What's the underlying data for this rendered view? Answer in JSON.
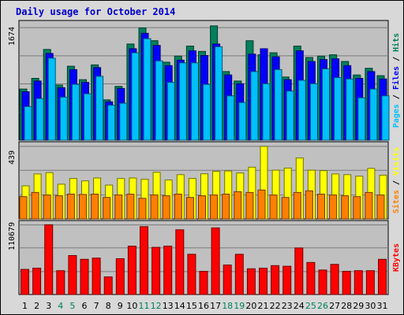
{
  "chart_data": {
    "type": "bar",
    "title": "Daily usage for October 2014",
    "categories": [
      "1",
      "2",
      "3",
      "4",
      "5",
      "6",
      "7",
      "8",
      "9",
      "10",
      "11",
      "12",
      "13",
      "14",
      "15",
      "16",
      "17",
      "18",
      "19",
      "20",
      "21",
      "22",
      "23",
      "24",
      "25",
      "26",
      "27",
      "28",
      "29",
      "30",
      "31"
    ],
    "weekend_days": [
      "4",
      "5",
      "11",
      "12",
      "18",
      "19",
      "25",
      "26"
    ],
    "colors": {
      "hits": "#00805c",
      "files": "#0000ff",
      "pages": "#00c0ff",
      "visits": "#ffff00",
      "sites": "#ff8000",
      "kbytes": "#ff0000",
      "title": "#0000cc",
      "weekend_day": "#00805c",
      "plot_bg": "#c0c0c0",
      "frame_bg": "#d8d8d8"
    },
    "panels": [
      {
        "id": "hits_files_pages",
        "ymax_label": "1674",
        "ylim": [
          0,
          1674
        ],
        "legend": [
          {
            "text": "Pages",
            "color": "#00c0ff"
          },
          {
            "text": " / ",
            "color": "#000000"
          },
          {
            "text": "Files",
            "color": "#0000ff"
          },
          {
            "text": " / ",
            "color": "#000000"
          },
          {
            "text": "Hits",
            "color": "#00805c"
          }
        ],
        "series": [
          {
            "name": "Hits",
            "color": "#00805c",
            "values": [
              760,
              920,
              1350,
              820,
              1100,
              900,
              1120,
              600,
              800,
              1430,
              1670,
              1480,
              1160,
              1250,
              1400,
              1320,
              1700,
              1020,
              880,
              1480,
              1270,
              1300,
              940,
              1400,
              1230,
              1250,
              1270,
              1170,
              970,
              1070,
              960
            ]
          },
          {
            "name": "Files",
            "color": "#0000ff",
            "values": [
              720,
              880,
              1290,
              780,
              1050,
              860,
              1080,
              570,
              770,
              1360,
              1590,
              1410,
              1110,
              1190,
              1330,
              1260,
              1430,
              970,
              840,
              1280,
              1360,
              1240,
              900,
              1330,
              1170,
              1200,
              1210,
              1110,
              920,
              1020,
              910
            ]
          },
          {
            "name": "Pages",
            "color": "#00c0ff",
            "values": [
              500,
              620,
              1220,
              640,
              830,
              690,
              950,
              520,
              550,
              1300,
              1510,
              1180,
              860,
              1150,
              1150,
              830,
              1390,
              660,
              560,
              1020,
              840,
              1050,
              730,
              890,
              840,
              1060,
              930,
              910,
              630,
              760,
              660
            ]
          }
        ]
      },
      {
        "id": "visits_sites",
        "ymax_label": "439",
        "ylim": [
          0,
          439
        ],
        "legend": [
          {
            "text": "Sites",
            "color": "#ff8000"
          },
          {
            "text": " / ",
            "color": "#000000"
          },
          {
            "text": "Visits",
            "color": "#ffff00"
          }
        ],
        "series": [
          {
            "name": "Visits",
            "color": "#ffff00",
            "values": [
              200,
              272,
              280,
              210,
              245,
              230,
              248,
              205,
              245,
              248,
              240,
              282,
              236,
              268,
              245,
              273,
              288,
              290,
              278,
              313,
              439,
              295,
              308,
              369,
              295,
              292,
              272,
              268,
              259,
              306,
              265
            ]
          },
          {
            "name": "Sites",
            "color": "#ff8000",
            "values": [
              135,
              160,
              145,
              140,
              150,
              148,
              150,
              130,
              145,
              150,
              125,
              145,
              140,
              150,
              130,
              140,
              145,
              150,
              165,
              160,
              175,
              145,
              130,
              160,
              170,
              150,
              145,
              140,
              135,
              160,
              145
            ]
          }
        ]
      },
      {
        "id": "kbytes",
        "ymax_label": "110679",
        "ylim": [
          0,
          110679
        ],
        "legend": [
          {
            "text": "KBytes",
            "color": "#ff0000"
          }
        ],
        "series": [
          {
            "name": "KBytes",
            "color": "#ff0000",
            "values": [
              40000,
              42000,
              111000,
              38000,
              62000,
              56000,
              58000,
              28000,
              57000,
              77000,
              108000,
              75000,
              77000,
              103000,
              64000,
              37000,
              106000,
              47000,
              64000,
              41000,
              42000,
              46000,
              45000,
              74000,
              51000,
              39000,
              48000,
              37000,
              38000,
              38000,
              56000
            ]
          }
        ]
      }
    ]
  }
}
